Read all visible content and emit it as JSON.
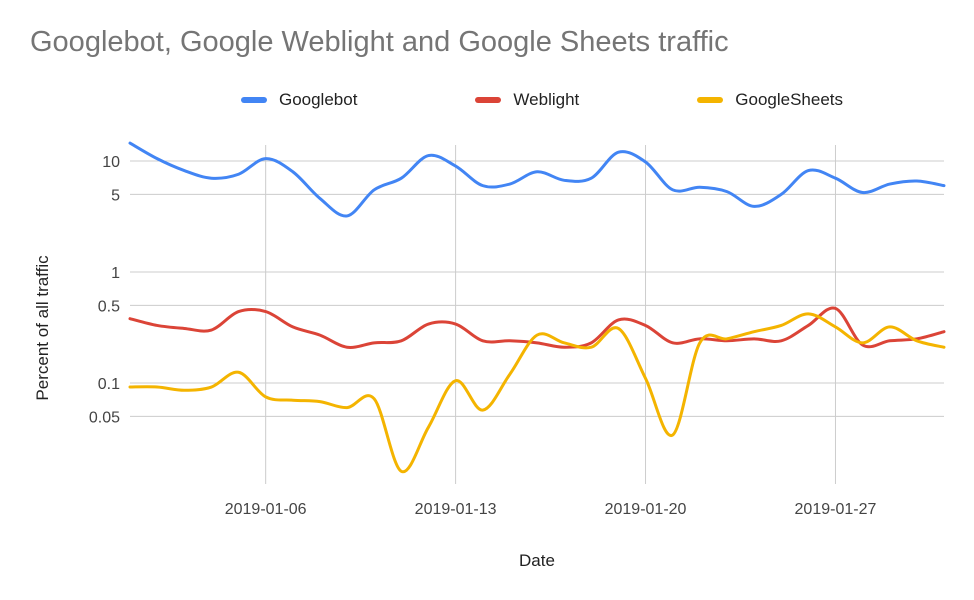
{
  "chart_data": {
    "type": "line",
    "title": "Googlebot, Google Weblight and Google Sheets traffic",
    "xlabel": "Date",
    "ylabel": "Percent of all traffic",
    "y_scale": "log",
    "ylim": [
      0.017,
      20
    ],
    "y_ticks": [
      {
        "value": 10,
        "label": "10"
      },
      {
        "value": 5,
        "label": "5"
      },
      {
        "value": 1,
        "label": "1"
      },
      {
        "value": 0.5,
        "label": "0.5"
      },
      {
        "value": 0.1,
        "label": "0.1"
      },
      {
        "value": 0.05,
        "label": "0.05"
      }
    ],
    "x_ticks": [
      "2019-01-06",
      "2019-01-13",
      "2019-01-20",
      "2019-01-27"
    ],
    "x": [
      "2019-01-01",
      "2019-01-02",
      "2019-01-03",
      "2019-01-04",
      "2019-01-05",
      "2019-01-06",
      "2019-01-07",
      "2019-01-08",
      "2019-01-09",
      "2019-01-10",
      "2019-01-11",
      "2019-01-12",
      "2019-01-13",
      "2019-01-14",
      "2019-01-15",
      "2019-01-16",
      "2019-01-17",
      "2019-01-18",
      "2019-01-19",
      "2019-01-20",
      "2019-01-21",
      "2019-01-22",
      "2019-01-23",
      "2019-01-24",
      "2019-01-25",
      "2019-01-26",
      "2019-01-27",
      "2019-01-28",
      "2019-01-29",
      "2019-01-30",
      "2019-01-31"
    ],
    "series": [
      {
        "name": "Googlebot",
        "color": "#4285f4",
        "values": [
          14.5,
          10.5,
          8.2,
          7.0,
          7.6,
          10.5,
          8.0,
          4.6,
          3.2,
          5.5,
          7.0,
          11.2,
          9.0,
          6.0,
          6.2,
          8.0,
          6.7,
          7.0,
          12.0,
          9.8,
          5.5,
          5.8,
          5.3,
          3.9,
          5.0,
          8.2,
          7.0,
          5.2,
          6.2,
          6.6,
          6.0
        ]
      },
      {
        "name": "Weblight",
        "color": "#db4437",
        "values": [
          0.38,
          0.33,
          0.31,
          0.3,
          0.44,
          0.44,
          0.32,
          0.27,
          0.21,
          0.23,
          0.24,
          0.34,
          0.34,
          0.24,
          0.24,
          0.23,
          0.21,
          0.23,
          0.37,
          0.33,
          0.23,
          0.25,
          0.24,
          0.25,
          0.24,
          0.33,
          0.47,
          0.22,
          0.24,
          0.25,
          0.29
        ]
      },
      {
        "name": "GoogleSheets",
        "color": "#f4b400",
        "values": [
          0.092,
          0.092,
          0.086,
          0.092,
          0.125,
          0.075,
          0.07,
          0.068,
          0.06,
          0.072,
          0.016,
          0.04,
          0.105,
          0.057,
          0.12,
          0.27,
          0.23,
          0.21,
          0.31,
          0.11,
          0.034,
          0.23,
          0.25,
          0.29,
          0.33,
          0.42,
          0.32,
          0.23,
          0.32,
          0.24,
          0.21
        ]
      }
    ],
    "legend_position": "top",
    "grid": true
  }
}
